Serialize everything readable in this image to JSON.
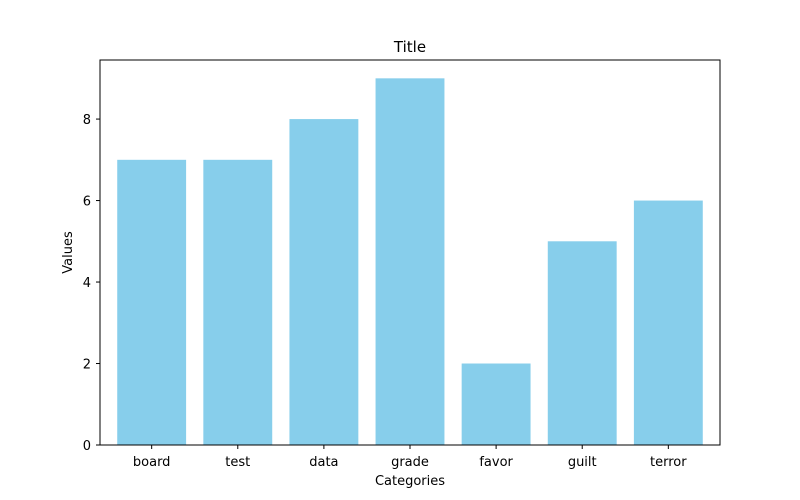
{
  "chart_data": {
    "type": "bar",
    "title": "Title",
    "xlabel": "Categories",
    "ylabel": "Values",
    "categories": [
      "board",
      "test",
      "data",
      "grade",
      "favor",
      "guilt",
      "terror"
    ],
    "values": [
      7,
      7,
      8,
      9,
      2,
      5,
      6
    ],
    "ylim": [
      0,
      9.45
    ],
    "yticks": [
      0,
      2,
      4,
      6,
      8
    ],
    "bar_color": "#87CEEB",
    "grid": false,
    "legend": "none"
  }
}
